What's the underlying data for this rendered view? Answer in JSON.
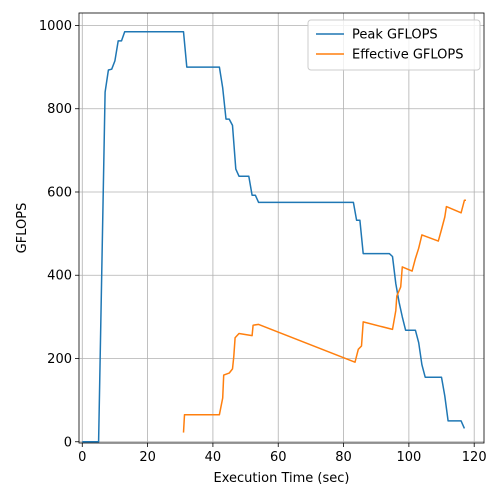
{
  "chart_data": {
    "type": "line",
    "xlabel": "Execution Time (sec)",
    "ylabel": "GFLOPS",
    "xlim": [
      -1,
      123
    ],
    "ylim": [
      -3,
      1030
    ],
    "xticks": [
      0,
      20,
      40,
      60,
      80,
      100,
      120
    ],
    "yticks": [
      0,
      200,
      400,
      600,
      800,
      1000
    ],
    "grid": true,
    "legend": "top-right",
    "series": [
      {
        "name": "Peak GFLOPS",
        "color": "#1f77b4",
        "points": [
          [
            0,
            0
          ],
          [
            5,
            0
          ],
          [
            7,
            840
          ],
          [
            8,
            893
          ],
          [
            9,
            895
          ],
          [
            10,
            915
          ],
          [
            11,
            963
          ],
          [
            12,
            963
          ],
          [
            13,
            985
          ],
          [
            31,
            985
          ],
          [
            32,
            900
          ],
          [
            42,
            900
          ],
          [
            43,
            850
          ],
          [
            44,
            775
          ],
          [
            45,
            775
          ],
          [
            46,
            760
          ],
          [
            47,
            655
          ],
          [
            48,
            638
          ],
          [
            51,
            638
          ],
          [
            52,
            592
          ],
          [
            53,
            592
          ],
          [
            54,
            575
          ],
          [
            83,
            575
          ],
          [
            84,
            532
          ],
          [
            85,
            532
          ],
          [
            86,
            452
          ],
          [
            94,
            452
          ],
          [
            95,
            445
          ],
          [
            96,
            380
          ],
          [
            97,
            335
          ],
          [
            98,
            300
          ],
          [
            99,
            268
          ],
          [
            102,
            268
          ],
          [
            103,
            238
          ],
          [
            104,
            185
          ],
          [
            105,
            155
          ],
          [
            110,
            155
          ],
          [
            111,
            110
          ],
          [
            112,
            50
          ],
          [
            116,
            50
          ],
          [
            117,
            32
          ]
        ]
      },
      {
        "name": "Effective GFLOPS",
        "color": "#ff7f0e",
        "points": [
          [
            31,
            22
          ],
          [
            31.3,
            65
          ],
          [
            42,
            65
          ],
          [
            43,
            105
          ],
          [
            43.3,
            160
          ],
          [
            45,
            165
          ],
          [
            46,
            175
          ],
          [
            46.4,
            205
          ],
          [
            46.8,
            250
          ],
          [
            48,
            260
          ],
          [
            52,
            255
          ],
          [
            52.3,
            280
          ],
          [
            54,
            282
          ],
          [
            83.5,
            191
          ],
          [
            84.5,
            222
          ],
          [
            85.5,
            230
          ],
          [
            86,
            288
          ],
          [
            95,
            270
          ],
          [
            96,
            315
          ],
          [
            96.3,
            350
          ],
          [
            97.5,
            372
          ],
          [
            98,
            420
          ],
          [
            101,
            410
          ],
          [
            102,
            440
          ],
          [
            103,
            465
          ],
          [
            104,
            497
          ],
          [
            109,
            482
          ],
          [
            110,
            510
          ],
          [
            111,
            540
          ],
          [
            111.5,
            565
          ],
          [
            116,
            550
          ],
          [
            117,
            580
          ],
          [
            117.5,
            580
          ]
        ]
      }
    ]
  }
}
